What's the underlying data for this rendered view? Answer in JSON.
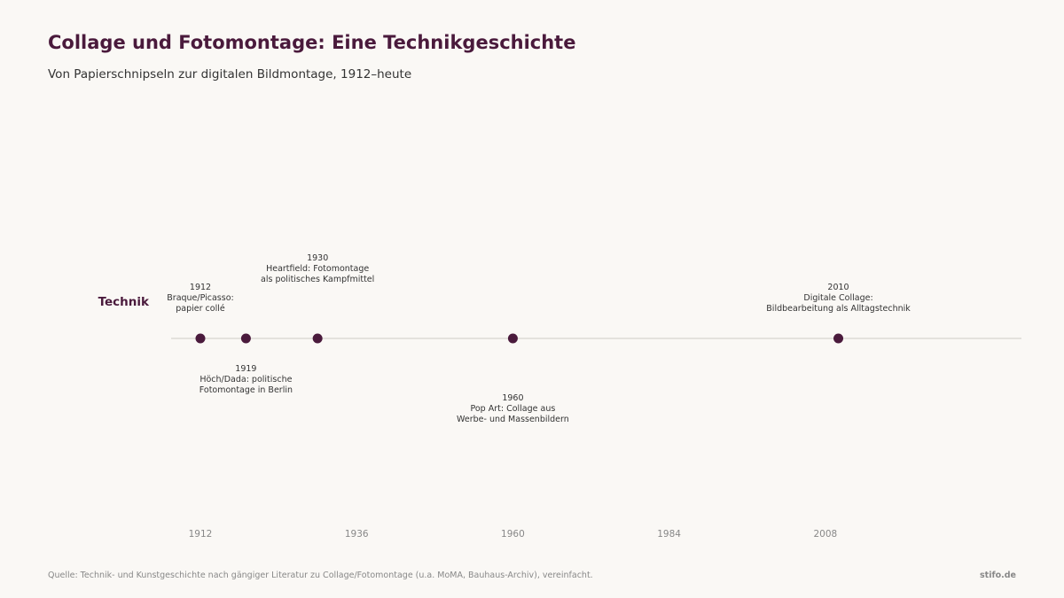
{
  "header": {
    "title": "Collage und Fotomontage: Eine Technikgeschichte",
    "subtitle": "Von Papierschnipseln zur digitalen Bildmontage, 1912–heute"
  },
  "footer": {
    "source": "Quelle: Technik- und Kunstgeschichte nach gängiger Literatur zu Collage/Fotomontage (u.a. MoMA, Bauhaus-Archiv), vereinfacht.",
    "brand": "stifo.de"
  },
  "colors": {
    "accent": "#4a1a3c",
    "line": "#dddbd5",
    "tick_text": "#888888",
    "label_text": "#333333"
  },
  "chart_data": {
    "type": "scatter",
    "xlim": [
      1912,
      2026
    ],
    "x_ticks": [
      1912,
      1936,
      1960,
      1984,
      2008
    ],
    "lanes": [
      {
        "label": "Technik",
        "events": [
          {
            "year": 1912,
            "date_label": "1912",
            "text": [
              "Braque/Picasso:",
              "papier collé"
            ],
            "placement": "above"
          },
          {
            "year": 1919,
            "date_label": "1919",
            "text": [
              "Höch/Dada: politische",
              "Fotomontage in Berlin"
            ],
            "placement": "below"
          },
          {
            "year": 1930,
            "date_label": "1930",
            "text": [
              "Heartfield: Fotomontage",
              "als politisches Kampfmittel"
            ],
            "placement": "above-far"
          },
          {
            "year": 1960,
            "date_label": "1960",
            "text": [
              "Pop Art: Collage aus",
              "Werbe- und Massenbildern"
            ],
            "placement": "below-far"
          },
          {
            "year": 2010,
            "date_label": "2010",
            "text": [
              "Digitale Collage:",
              "Bildbearbeitung als Alltagstechnik"
            ],
            "placement": "above"
          }
        ]
      }
    ]
  }
}
